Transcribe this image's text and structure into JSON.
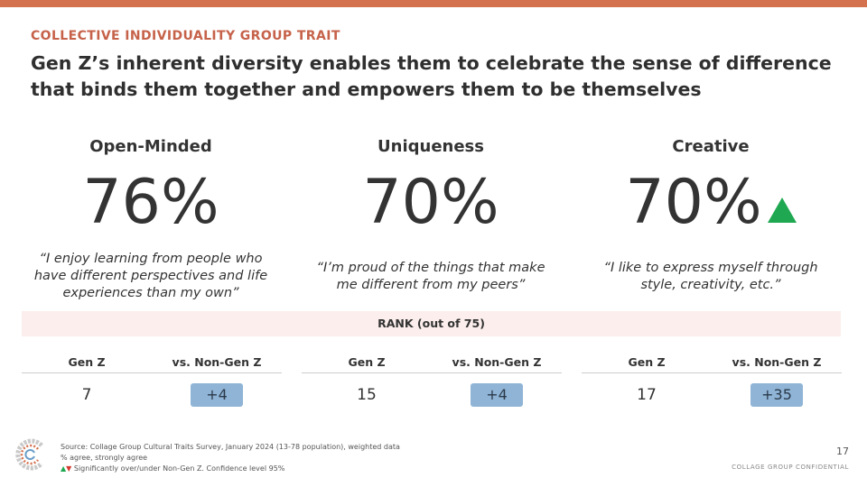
{
  "header": {
    "eyebrow": "COLLECTIVE INDIVIDUALITY GROUP TRAIT",
    "headline": "Gen Z’s inherent diversity enables them to celebrate the sense of difference that binds them together and empowers them to be themselves"
  },
  "traits": [
    {
      "title": "Open-Minded",
      "percent": "76%",
      "significant_up": false,
      "quote": "“I enjoy learning from people who have different perspectives and life experiences than my own”"
    },
    {
      "title": "Uniqueness",
      "percent": "70%",
      "significant_up": false,
      "quote": "“I’m proud of the things that make me different from my peers”"
    },
    {
      "title": "Creative",
      "percent": "70%",
      "significant_up": true,
      "quote": "“I like to express myself through style, creativity, etc.”"
    }
  ],
  "rank": {
    "label": "RANK (out of 75)",
    "col_genz": "Gen Z",
    "col_vs": "vs. Non-Gen Z",
    "rows": [
      {
        "genz": "7",
        "vs": "+4"
      },
      {
        "genz": "15",
        "vs": "+4"
      },
      {
        "genz": "17",
        "vs": "+35"
      }
    ]
  },
  "footer": {
    "source_line1": "Source: Collage Group Cultural Traits Survey, January 2024 (13-78 population), weighted data",
    "source_line2": "% agree, strongly agree",
    "source_line3": "Significantly over/under Non-Gen Z. Confidence level 95%",
    "page_number": "17",
    "confidential": "COLLAGE GROUP CONFIDENTIAL"
  },
  "colors": {
    "accent": "#d4714e",
    "eyebrow": "#c6624a",
    "band": "#fbeeec",
    "pill": "#8fb4d6",
    "up": "#1fa851",
    "down": "#d43a2f"
  },
  "icons": {
    "significance_up": "green-up-triangle-icon",
    "logo": "collage-group-logo-icon"
  }
}
